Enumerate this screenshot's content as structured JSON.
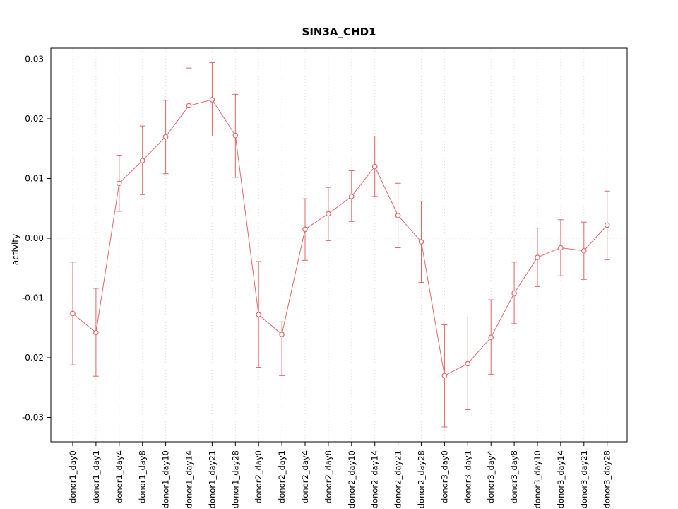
{
  "title": "SIN3A_CHD1",
  "ylabel": "activity",
  "chart_data": {
    "type": "line",
    "title": "SIN3A_CHD1",
    "xlabel": "",
    "ylabel": "activity",
    "ylim": [
      -0.032,
      0.031
    ],
    "yticks": [
      -0.03,
      -0.02,
      -0.01,
      0,
      0.01,
      0.02,
      0.03
    ],
    "grid": "vertical dotted gridline at each category; dotted horizontal line at y=0",
    "legend_position": "none",
    "series_color": "#e06666",
    "point_style": "open-circle",
    "error_bars": true,
    "categories": [
      "donor1_day0",
      "donor1_day1",
      "donor1_day4",
      "donor1_day8",
      "donor1_day10",
      "donor1_day14",
      "donor1_day21",
      "donor1_day28",
      "donor2_day0",
      "donor2_day1",
      "donor2_day4",
      "donor2_day8",
      "donor2_day10",
      "donor2_day14",
      "donor2_day21",
      "donor2_day28",
      "donor3_day0",
      "donor3_day1",
      "donor3_day4",
      "donor3_day8",
      "donor3_day10",
      "donor3_day14",
      "donor3_day21",
      "donor3_day28"
    ],
    "values": [
      -0.0126,
      -0.0158,
      0.0092,
      0.013,
      0.017,
      0.0222,
      0.0232,
      0.0172,
      -0.0128,
      -0.0161,
      0.0015,
      0.0041,
      0.007,
      0.012,
      0.0038,
      -0.0006,
      -0.023,
      -0.021,
      -0.0166,
      -0.0092,
      -0.0032,
      -0.0016,
      -0.0021,
      0.0022
    ],
    "error_low": [
      -0.0212,
      -0.0231,
      0.0045,
      0.0073,
      0.0108,
      0.0158,
      0.0171,
      0.0102,
      -0.0216,
      -0.023,
      -0.0037,
      -0.0004,
      0.0028,
      0.007,
      -0.0016,
      -0.0074,
      -0.0316,
      -0.0287,
      -0.0228,
      -0.0143,
      -0.0081,
      -0.0063,
      -0.0069,
      -0.0036
    ],
    "error_high": [
      -0.004,
      -0.0084,
      0.0139,
      0.0188,
      0.0231,
      0.0285,
      0.0294,
      0.0241,
      -0.0039,
      -0.014,
      0.0066,
      0.0085,
      0.0113,
      0.0171,
      0.0092,
      0.0062,
      -0.0145,
      -0.0132,
      -0.0103,
      -0.004,
      0.0017,
      0.0031,
      0.0027,
      0.0079
    ]
  }
}
